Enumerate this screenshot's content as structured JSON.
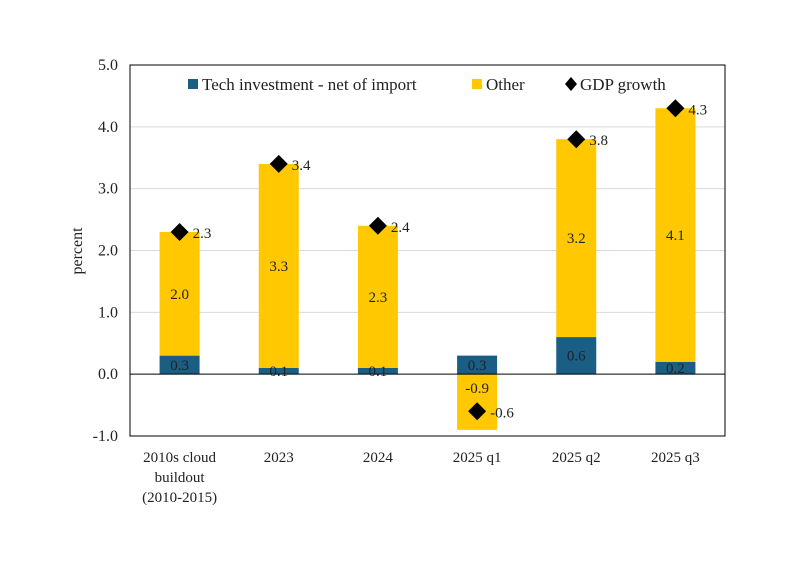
{
  "colors": {
    "tech": "#1a5e83",
    "other": "#ffc800",
    "gdp": "#000000",
    "grid": "#d9d9d9",
    "axis": "#000000"
  },
  "chart_data": {
    "type": "bar",
    "stacked": true,
    "title": "",
    "xlabel": "",
    "ylabel": "percent",
    "ylim": [
      -1.0,
      5.0
    ],
    "yticks": [
      "-1.0",
      "0.0",
      "1.0",
      "2.0",
      "3.0",
      "4.0",
      "5.0"
    ],
    "categories": [
      [
        "2010s cloud",
        "buildout",
        "(2010-2015)"
      ],
      [
        "2023"
      ],
      [
        "2024"
      ],
      [
        "2025 q1"
      ],
      [
        "2025 q2"
      ],
      [
        "2025 q3"
      ]
    ],
    "series": [
      {
        "name": "Tech investment - net of import",
        "kind": "bar",
        "values": [
          0.3,
          0.1,
          0.1,
          0.3,
          0.6,
          0.2
        ],
        "labels": [
          "0.3",
          "0.1",
          "0.1",
          "0.3",
          "0.6",
          "0.2"
        ]
      },
      {
        "name": "Other",
        "kind": "bar",
        "values": [
          2.0,
          3.3,
          2.3,
          -0.9,
          3.2,
          4.1
        ],
        "labels": [
          "2.0",
          "3.3",
          "2.3",
          "-0.9",
          "3.2",
          "4.1"
        ]
      },
      {
        "name": "GDP growth",
        "kind": "marker",
        "values": [
          2.3,
          3.4,
          2.4,
          -0.6,
          3.8,
          4.3
        ],
        "labels": [
          "2.3",
          "3.4",
          "2.4",
          "-0.6",
          "3.8",
          "4.3"
        ]
      }
    ],
    "legend_position": "top",
    "grid": true
  }
}
